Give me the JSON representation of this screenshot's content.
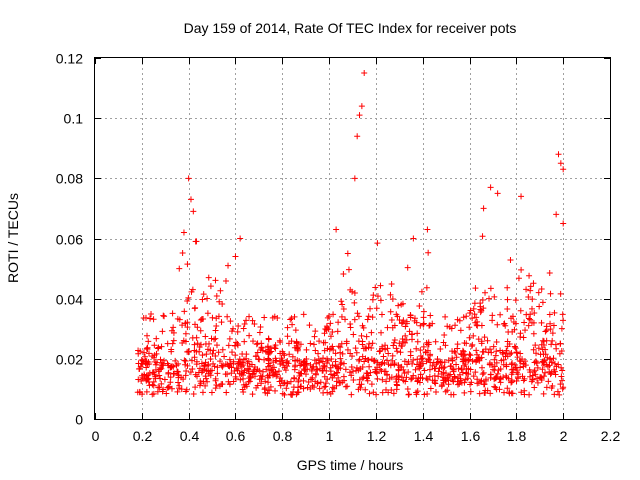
{
  "chart_data": {
    "type": "scatter",
    "title": "Day 159 of 2014, Rate Of TEC Index for receiver pots",
    "xlabel": "GPS time / hours",
    "ylabel": "ROTI / TECUs",
    "xlim": [
      0,
      2.2
    ],
    "ylim": [
      0,
      0.12
    ],
    "grid": true,
    "x_ticks": [
      "0",
      "0.2",
      "0.4",
      "0.6",
      "0.8",
      "1",
      "1.2",
      "1.4",
      "1.6",
      "1.8",
      "2",
      "2.2"
    ],
    "y_ticks": [
      "0",
      "0.02",
      "0.04",
      "0.06",
      "0.08",
      "0.1",
      "0.12"
    ],
    "marker": "plus",
    "marker_color": "#ff0000",
    "series": [
      {
        "name": "ROTI",
        "x_start": 0.18,
        "x_end": 2.0,
        "notable_points": [
          {
            "x": 0.4,
            "y": 0.08
          },
          {
            "x": 0.41,
            "y": 0.073
          },
          {
            "x": 0.42,
            "y": 0.069
          },
          {
            "x": 0.38,
            "y": 0.062
          },
          {
            "x": 0.43,
            "y": 0.059
          },
          {
            "x": 0.36,
            "y": 0.05
          },
          {
            "x": 0.62,
            "y": 0.06
          },
          {
            "x": 0.6,
            "y": 0.054
          },
          {
            "x": 1.15,
            "y": 0.115
          },
          {
            "x": 1.14,
            "y": 0.104
          },
          {
            "x": 1.13,
            "y": 0.101
          },
          {
            "x": 1.12,
            "y": 0.094
          },
          {
            "x": 1.11,
            "y": 0.08
          },
          {
            "x": 1.03,
            "y": 0.063
          },
          {
            "x": 1.08,
            "y": 0.055
          },
          {
            "x": 1.36,
            "y": 0.06
          },
          {
            "x": 1.42,
            "y": 0.063
          },
          {
            "x": 1.69,
            "y": 0.077
          },
          {
            "x": 1.72,
            "y": 0.075
          },
          {
            "x": 1.82,
            "y": 0.074
          },
          {
            "x": 1.66,
            "y": 0.07
          },
          {
            "x": 1.98,
            "y": 0.088
          },
          {
            "x": 1.99,
            "y": 0.085
          },
          {
            "x": 2.0,
            "y": 0.083
          },
          {
            "x": 1.97,
            "y": 0.068
          },
          {
            "x": 2.0,
            "y": 0.065
          }
        ],
        "bulk_y_range": [
          0.004,
          0.035
        ]
      }
    ]
  }
}
